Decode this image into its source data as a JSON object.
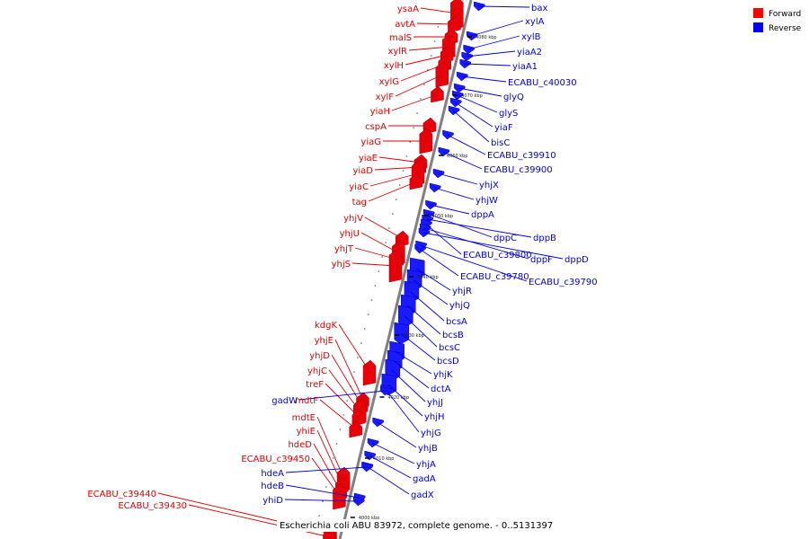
{
  "caption": "Escherichia coli ABU 83972, complete genome. - 0..5131397",
  "legend": [
    {
      "label": "Forward",
      "color": "#ff0000"
    },
    {
      "label": "Reverse",
      "color": "#0000ff"
    }
  ],
  "colors": {
    "forward": "#e8000b",
    "reverse": "#1a1aff",
    "forward_line": "#dd0000",
    "reverse_line": "#0000dd",
    "axis": "#808080"
  },
  "ticks": [
    "4000 kbp",
    "4010 kbp",
    "4020 kbp",
    "4030 kbp",
    "4040 kbp",
    "4050 kbp",
    "4060 kbp",
    "4070 kbp",
    "4080 kbp"
  ],
  "forward_labels": [
    "ysaA",
    "avtA",
    "malS",
    "xylR",
    "xylH",
    "xylG",
    "xylF",
    "yiaH",
    "cspA",
    "yiaG",
    "yiaE",
    "yiaD",
    "yiaC",
    "tag",
    "yhjV",
    "yhjU",
    "yhjT",
    "yhjS",
    "kdgK",
    "yhjE",
    "yhjD",
    "yhjC",
    "treF",
    "mdtF",
    "mdtE",
    "yhiE",
    "hdeD",
    "ECABU_c39450",
    "ECABU_c39440",
    "ECABU_c39430"
  ],
  "reverse_labels": [
    "bax",
    "xylA",
    "xylB",
    "yiaA2",
    "yiaA1",
    "ECABU_c40030",
    "glyQ",
    "glyS",
    "yiaF",
    "bisC",
    "ECABU_c39910",
    "ECABU_c39900",
    "yhjX",
    "yhjW",
    "dppA",
    "dppC",
    "dppB",
    "ECABU_c39800",
    "dppF",
    "dppD",
    "ECABU_c39780",
    "ECABU_c39790",
    "yhjR",
    "yhjQ",
    "bcsA",
    "bcsB",
    "bcsC",
    "bcsD",
    "yhjK",
    "dctA",
    "yhjJ",
    "yhjH",
    "yhjG",
    "yhjB",
    "yhjA",
    "gadA",
    "gadX",
    "gadW",
    "hdeA",
    "hdeB",
    "yhiD"
  ]
}
